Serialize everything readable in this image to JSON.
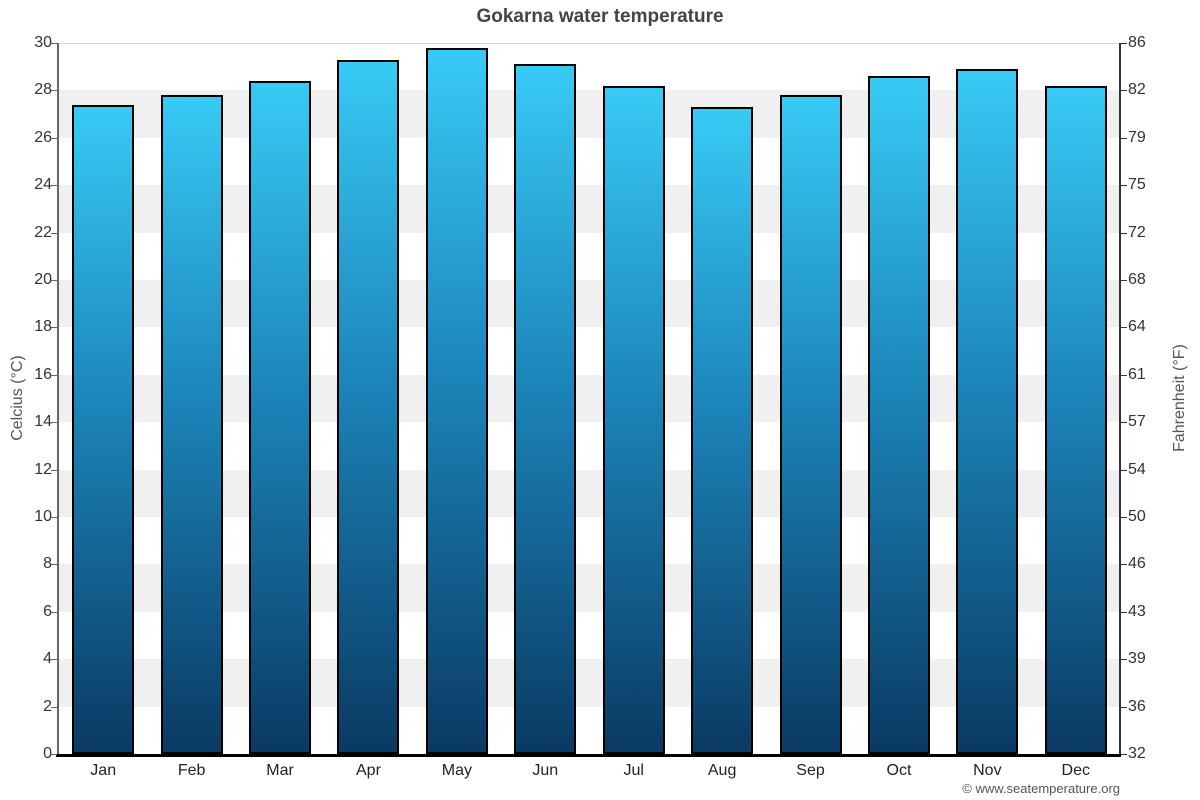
{
  "header": {
    "title": "Gokarna water temperature"
  },
  "footer": {
    "copyright": "© www.seatemperature.org"
  },
  "chart_data": {
    "type": "bar",
    "title": "Gokarna water temperature",
    "categories": [
      "Jan",
      "Feb",
      "Mar",
      "Apr",
      "May",
      "Jun",
      "Jul",
      "Aug",
      "Sep",
      "Oct",
      "Nov",
      "Dec"
    ],
    "values": [
      27.4,
      27.8,
      28.4,
      29.3,
      29.8,
      29.1,
      28.2,
      27.3,
      27.8,
      28.6,
      28.9,
      28.2
    ],
    "xlabel": "",
    "ylabel_left": "Celcius (°C)",
    "ylabel_right": "Fahrenheit (°F)",
    "ylim": [
      0,
      30
    ],
    "ytick_step": 2,
    "yticks_celsius": [
      0,
      2,
      4,
      6,
      8,
      10,
      12,
      14,
      16,
      18,
      20,
      22,
      24,
      26,
      28,
      30
    ],
    "yticks_fahrenheit": [
      32,
      36,
      39,
      43,
      46,
      50,
      54,
      57,
      61,
      64,
      68,
      72,
      75,
      79,
      82,
      86
    ],
    "grid": "alternating-horizontal-bands",
    "legend": "none",
    "colors": {
      "bar_gradient_top": "#38caf5",
      "bar_gradient_mid": "#1c85ba",
      "bar_gradient_bottom": "#0a3a63",
      "bar_border": "#000000",
      "band_fill": "#f0f0f0",
      "plot_background": "#ffffff"
    }
  }
}
